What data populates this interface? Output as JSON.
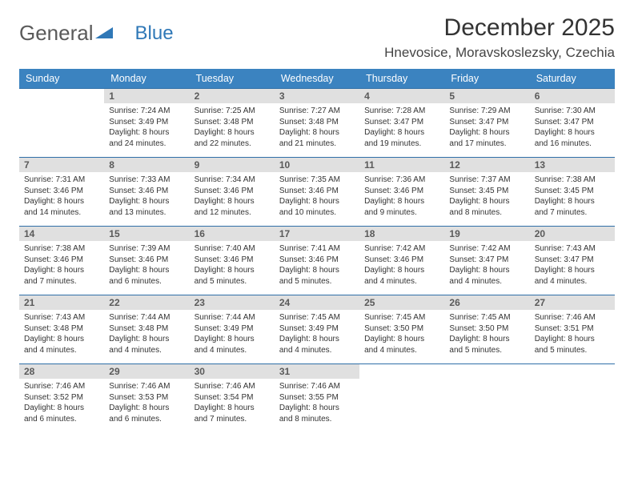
{
  "brand": {
    "part1": "General",
    "part2": "Blue"
  },
  "title": "December 2025",
  "location": "Hnevosice, Moravskoslezsky, Czechia",
  "colors": {
    "header_bg": "#3b83c0",
    "header_text": "#ffffff",
    "daynum_bg": "#e0e0e0",
    "daynum_border": "#2f6fa8",
    "body_text": "#333333",
    "logo_gray": "#5a5a5a",
    "logo_blue": "#2f78b7",
    "page_bg": "#ffffff"
  },
  "fonts": {
    "title_size_pt": 22,
    "location_size_pt": 13,
    "weekday_size_pt": 9,
    "daynum_size_pt": 9,
    "cell_size_pt": 7.5
  },
  "weekdays": [
    "Sunday",
    "Monday",
    "Tuesday",
    "Wednesday",
    "Thursday",
    "Friday",
    "Saturday"
  ],
  "weeks": [
    [
      null,
      {
        "n": "1",
        "sr": "7:24 AM",
        "ss": "3:49 PM",
        "dl": "8 hours and 24 minutes."
      },
      {
        "n": "2",
        "sr": "7:25 AM",
        "ss": "3:48 PM",
        "dl": "8 hours and 22 minutes."
      },
      {
        "n": "3",
        "sr": "7:27 AM",
        "ss": "3:48 PM",
        "dl": "8 hours and 21 minutes."
      },
      {
        "n": "4",
        "sr": "7:28 AM",
        "ss": "3:47 PM",
        "dl": "8 hours and 19 minutes."
      },
      {
        "n": "5",
        "sr": "7:29 AM",
        "ss": "3:47 PM",
        "dl": "8 hours and 17 minutes."
      },
      {
        "n": "6",
        "sr": "7:30 AM",
        "ss": "3:47 PM",
        "dl": "8 hours and 16 minutes."
      }
    ],
    [
      {
        "n": "7",
        "sr": "7:31 AM",
        "ss": "3:46 PM",
        "dl": "8 hours and 14 minutes."
      },
      {
        "n": "8",
        "sr": "7:33 AM",
        "ss": "3:46 PM",
        "dl": "8 hours and 13 minutes."
      },
      {
        "n": "9",
        "sr": "7:34 AM",
        "ss": "3:46 PM",
        "dl": "8 hours and 12 minutes."
      },
      {
        "n": "10",
        "sr": "7:35 AM",
        "ss": "3:46 PM",
        "dl": "8 hours and 10 minutes."
      },
      {
        "n": "11",
        "sr": "7:36 AM",
        "ss": "3:46 PM",
        "dl": "8 hours and 9 minutes."
      },
      {
        "n": "12",
        "sr": "7:37 AM",
        "ss": "3:45 PM",
        "dl": "8 hours and 8 minutes."
      },
      {
        "n": "13",
        "sr": "7:38 AM",
        "ss": "3:45 PM",
        "dl": "8 hours and 7 minutes."
      }
    ],
    [
      {
        "n": "14",
        "sr": "7:38 AM",
        "ss": "3:46 PM",
        "dl": "8 hours and 7 minutes."
      },
      {
        "n": "15",
        "sr": "7:39 AM",
        "ss": "3:46 PM",
        "dl": "8 hours and 6 minutes."
      },
      {
        "n": "16",
        "sr": "7:40 AM",
        "ss": "3:46 PM",
        "dl": "8 hours and 5 minutes."
      },
      {
        "n": "17",
        "sr": "7:41 AM",
        "ss": "3:46 PM",
        "dl": "8 hours and 5 minutes."
      },
      {
        "n": "18",
        "sr": "7:42 AM",
        "ss": "3:46 PM",
        "dl": "8 hours and 4 minutes."
      },
      {
        "n": "19",
        "sr": "7:42 AM",
        "ss": "3:47 PM",
        "dl": "8 hours and 4 minutes."
      },
      {
        "n": "20",
        "sr": "7:43 AM",
        "ss": "3:47 PM",
        "dl": "8 hours and 4 minutes."
      }
    ],
    [
      {
        "n": "21",
        "sr": "7:43 AM",
        "ss": "3:48 PM",
        "dl": "8 hours and 4 minutes."
      },
      {
        "n": "22",
        "sr": "7:44 AM",
        "ss": "3:48 PM",
        "dl": "8 hours and 4 minutes."
      },
      {
        "n": "23",
        "sr": "7:44 AM",
        "ss": "3:49 PM",
        "dl": "8 hours and 4 minutes."
      },
      {
        "n": "24",
        "sr": "7:45 AM",
        "ss": "3:49 PM",
        "dl": "8 hours and 4 minutes."
      },
      {
        "n": "25",
        "sr": "7:45 AM",
        "ss": "3:50 PM",
        "dl": "8 hours and 4 minutes."
      },
      {
        "n": "26",
        "sr": "7:45 AM",
        "ss": "3:50 PM",
        "dl": "8 hours and 5 minutes."
      },
      {
        "n": "27",
        "sr": "7:46 AM",
        "ss": "3:51 PM",
        "dl": "8 hours and 5 minutes."
      }
    ],
    [
      {
        "n": "28",
        "sr": "7:46 AM",
        "ss": "3:52 PM",
        "dl": "8 hours and 6 minutes."
      },
      {
        "n": "29",
        "sr": "7:46 AM",
        "ss": "3:53 PM",
        "dl": "8 hours and 6 minutes."
      },
      {
        "n": "30",
        "sr": "7:46 AM",
        "ss": "3:54 PM",
        "dl": "8 hours and 7 minutes."
      },
      {
        "n": "31",
        "sr": "7:46 AM",
        "ss": "3:55 PM",
        "dl": "8 hours and 8 minutes."
      },
      null,
      null,
      null
    ]
  ],
  "labels": {
    "sunrise": "Sunrise:",
    "sunset": "Sunset:",
    "daylight": "Daylight:"
  }
}
